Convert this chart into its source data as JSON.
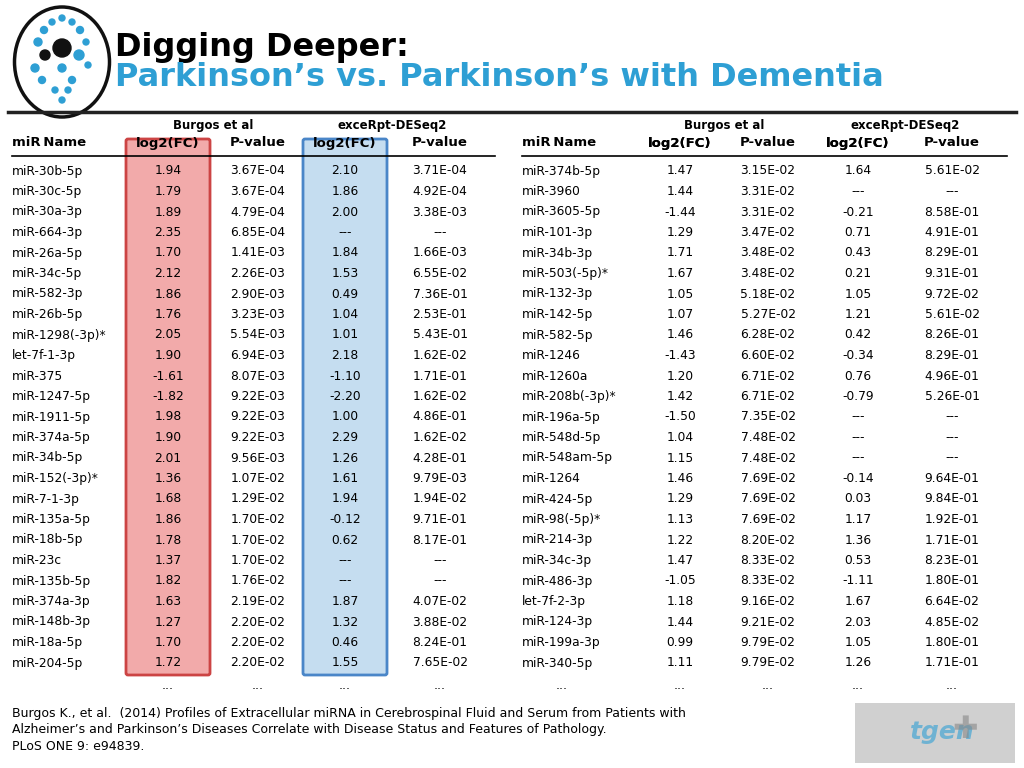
{
  "title1": "Digging Deeper:",
  "title2": "Parkinson’s vs. Parkinson’s with Dementia",
  "title1_color": "#000000",
  "title2_color": "#2e9fd4",
  "header1": "Burgos et al",
  "header2": "exceRpt‑DESeq2",
  "left_table": [
    [
      "miR-30b-5p",
      "1.94",
      "3.67E-04",
      "2.10",
      "3.71E-04"
    ],
    [
      "miR-30c-5p",
      "1.79",
      "3.67E-04",
      "1.86",
      "4.92E-04"
    ],
    [
      "miR-30a-3p",
      "1.89",
      "4.79E-04",
      "2.00",
      "3.38E-03"
    ],
    [
      "miR-664-3p",
      "2.35",
      "6.85E-04",
      "---",
      "---"
    ],
    [
      "miR-26a-5p",
      "1.70",
      "1.41E-03",
      "1.84",
      "1.66E-03"
    ],
    [
      "miR-34c-5p",
      "2.12",
      "2.26E-03",
      "1.53",
      "6.55E-02"
    ],
    [
      "miR-582-3p",
      "1.86",
      "2.90E-03",
      "0.49",
      "7.36E-01"
    ],
    [
      "miR-26b-5p",
      "1.76",
      "3.23E-03",
      "1.04",
      "2.53E-01"
    ],
    [
      "miR-1298(-3p)*",
      "2.05",
      "5.54E-03",
      "1.01",
      "5.43E-01"
    ],
    [
      "let-7f-1-3p",
      "1.90",
      "6.94E-03",
      "2.18",
      "1.62E-02"
    ],
    [
      "miR-375",
      "-1.61",
      "8.07E-03",
      "-1.10",
      "1.71E-01"
    ],
    [
      "miR-1247-5p",
      "-1.82",
      "9.22E-03",
      "-2.20",
      "1.62E-02"
    ],
    [
      "miR-1911-5p",
      "1.98",
      "9.22E-03",
      "1.00",
      "4.86E-01"
    ],
    [
      "miR-374a-5p",
      "1.90",
      "9.22E-03",
      "2.29",
      "1.62E-02"
    ],
    [
      "miR-34b-5p",
      "2.01",
      "9.56E-03",
      "1.26",
      "4.28E-01"
    ],
    [
      "miR-152(-3p)*",
      "1.36",
      "1.07E-02",
      "1.61",
      "9.79E-03"
    ],
    [
      "miR-7-1-3p",
      "1.68",
      "1.29E-02",
      "1.94",
      "1.94E-02"
    ],
    [
      "miR-135a-5p",
      "1.86",
      "1.70E-02",
      "-0.12",
      "9.71E-01"
    ],
    [
      "miR-18b-5p",
      "1.78",
      "1.70E-02",
      "0.62",
      "8.17E-01"
    ],
    [
      "miR-23c",
      "1.37",
      "1.70E-02",
      "---",
      "---"
    ],
    [
      "miR-135b-5p",
      "1.82",
      "1.76E-02",
      "---",
      "---"
    ],
    [
      "miR-374a-3p",
      "1.63",
      "2.19E-02",
      "1.87",
      "4.07E-02"
    ],
    [
      "miR-148b-3p",
      "1.27",
      "2.20E-02",
      "1.32",
      "3.88E-02"
    ],
    [
      "miR-18a-5p",
      "1.70",
      "2.20E-02",
      "0.46",
      "8.24E-01"
    ],
    [
      "miR-204-5p",
      "1.72",
      "2.20E-02",
      "1.55",
      "7.65E-02"
    ]
  ],
  "right_table": [
    [
      "miR-374b-5p",
      "1.47",
      "3.15E-02",
      "1.64",
      "5.61E-02"
    ],
    [
      "miR-3960",
      "1.44",
      "3.31E-02",
      "---",
      "---"
    ],
    [
      "miR-3605-5p",
      "-1.44",
      "3.31E-02",
      "-0.21",
      "8.58E-01"
    ],
    [
      "miR-101-3p",
      "1.29",
      "3.47E-02",
      "0.71",
      "4.91E-01"
    ],
    [
      "miR-34b-3p",
      "1.71",
      "3.48E-02",
      "0.43",
      "8.29E-01"
    ],
    [
      "miR-503(-5p)*",
      "1.67",
      "3.48E-02",
      "0.21",
      "9.31E-01"
    ],
    [
      "miR-132-3p",
      "1.05",
      "5.18E-02",
      "1.05",
      "9.72E-02"
    ],
    [
      "miR-142-5p",
      "1.07",
      "5.27E-02",
      "1.21",
      "5.61E-02"
    ],
    [
      "miR-582-5p",
      "1.46",
      "6.28E-02",
      "0.42",
      "8.26E-01"
    ],
    [
      "miR-1246",
      "-1.43",
      "6.60E-02",
      "-0.34",
      "8.29E-01"
    ],
    [
      "miR-1260a",
      "1.20",
      "6.71E-02",
      "0.76",
      "4.96E-01"
    ],
    [
      "miR-208b(-3p)*",
      "1.42",
      "6.71E-02",
      "-0.79",
      "5.26E-01"
    ],
    [
      "miR-196a-5p",
      "-1.50",
      "7.35E-02",
      "---",
      "---"
    ],
    [
      "miR-548d-5p",
      "1.04",
      "7.48E-02",
      "---",
      "---"
    ],
    [
      "miR-548am-5p",
      "1.15",
      "7.48E-02",
      "---",
      "---"
    ],
    [
      "miR-1264",
      "1.46",
      "7.69E-02",
      "-0.14",
      "9.64E-01"
    ],
    [
      "miR-424-5p",
      "1.29",
      "7.69E-02",
      "0.03",
      "9.84E-01"
    ],
    [
      "miR-98(-5p)*",
      "1.13",
      "7.69E-02",
      "1.17",
      "1.92E-01"
    ],
    [
      "miR-214-3p",
      "1.22",
      "8.20E-02",
      "1.36",
      "1.71E-01"
    ],
    [
      "miR-34c-3p",
      "1.47",
      "8.33E-02",
      "0.53",
      "8.23E-01"
    ],
    [
      "miR-486-3p",
      "-1.05",
      "8.33E-02",
      "-1.11",
      "1.80E-01"
    ],
    [
      "let-7f-2-3p",
      "1.18",
      "9.16E-02",
      "1.67",
      "6.64E-02"
    ],
    [
      "miR-124-3p",
      "1.44",
      "9.21E-02",
      "2.03",
      "4.85E-02"
    ],
    [
      "miR-199a-3p",
      "0.99",
      "9.79E-02",
      "1.05",
      "1.80E-01"
    ],
    [
      "miR-340-5p",
      "1.11",
      "9.79E-02",
      "1.26",
      "1.71E-01"
    ]
  ],
  "footnote_line1": "Burgos K., et al.  (2014) Profiles of Extracellular miRNA in Cerebrospinal Fluid and Serum from Patients with",
  "footnote_line2": "Alzheimer’s and Parkinson’s Diseases Correlate with Disease Status and Features of Pathology.",
  "footnote_line3": "PLoS ONE 9: e94839.",
  "bg_color": "#ffffff",
  "pink_bg": "#f2aaaa",
  "pink_border": "#cc4444",
  "blue_bg": "#c5ddf0",
  "blue_border": "#4a86c8",
  "tgen_color": "#2e9fd4",
  "tgen_bg": "#d0d0d0"
}
